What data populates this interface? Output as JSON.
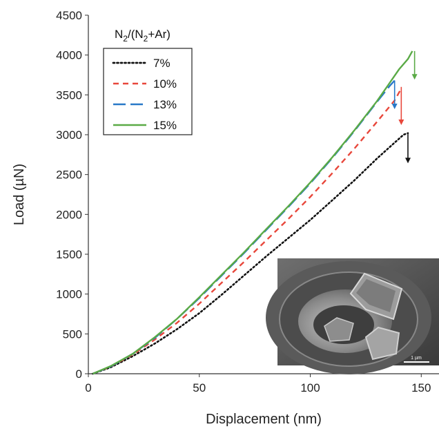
{
  "chart_data": {
    "type": "line",
    "xlabel": "Displacement (nm)",
    "ylabel": "Load (µN)",
    "xlim": [
      0,
      158
    ],
    "ylim": [
      0,
      4500
    ],
    "xticks": [
      0,
      50,
      100,
      150
    ],
    "yticks": [
      0,
      500,
      1000,
      1500,
      2000,
      2500,
      3000,
      3500,
      4000,
      4500
    ],
    "grid": false,
    "legend": {
      "placement": "top-left",
      "title_main": "N",
      "title_sub1": "2",
      "title_mid": "/(N",
      "title_sub2": "2",
      "title_end": "+Ar)"
    },
    "series": [
      {
        "name": "7%",
        "color": "#111111",
        "dash": "dotted",
        "x": [
          2,
          10,
          20,
          30,
          40,
          50,
          60,
          70,
          80,
          90,
          100,
          110,
          120,
          130,
          138,
          142,
          144
        ],
        "y": [
          0,
          80,
          220,
          380,
          560,
          760,
          990,
          1230,
          1470,
          1700,
          1930,
          2180,
          2430,
          2700,
          2900,
          3000,
          3020
        ],
        "drop": {
          "x": 144,
          "from": 3020,
          "to": 2650
        }
      },
      {
        "name": "10%",
        "color": "#e8473b",
        "dash": "dashed",
        "x": [
          2,
          10,
          20,
          30,
          40,
          50,
          60,
          70,
          80,
          90,
          100,
          110,
          120,
          130,
          138,
          141
        ],
        "y": [
          0,
          90,
          240,
          430,
          640,
          880,
          1140,
          1400,
          1670,
          1940,
          2220,
          2520,
          2830,
          3160,
          3430,
          3580
        ],
        "drop": {
          "x": 141,
          "from": 3600,
          "to": 3130
        }
      },
      {
        "name": "13%",
        "color": "#2878c8",
        "dash": "longdash",
        "x": [
          2,
          10,
          20,
          30,
          40,
          50,
          60,
          70,
          80,
          90,
          100,
          110,
          120,
          130,
          136,
          138
        ],
        "y": [
          0,
          90,
          250,
          450,
          690,
          950,
          1230,
          1510,
          1800,
          2090,
          2390,
          2710,
          3050,
          3410,
          3620,
          3680
        ],
        "drop": {
          "x": 138,
          "from": 3680,
          "to": 3330
        }
      },
      {
        "name": "15%",
        "color": "#5aaa46",
        "dash": "solid",
        "x": [
          2,
          10,
          20,
          30,
          40,
          50,
          60,
          70,
          80,
          90,
          100,
          110,
          120,
          130,
          135,
          140,
          144,
          146
        ],
        "y": [
          0,
          95,
          250,
          460,
          690,
          960,
          1240,
          1520,
          1810,
          2100,
          2400,
          2720,
          3060,
          3420,
          3620,
          3820,
          3950,
          4050
        ],
        "drop": {
          "x": 147,
          "from": 4050,
          "to": 3700
        }
      }
    ]
  },
  "inset": {
    "scale_label": "1 µm"
  }
}
